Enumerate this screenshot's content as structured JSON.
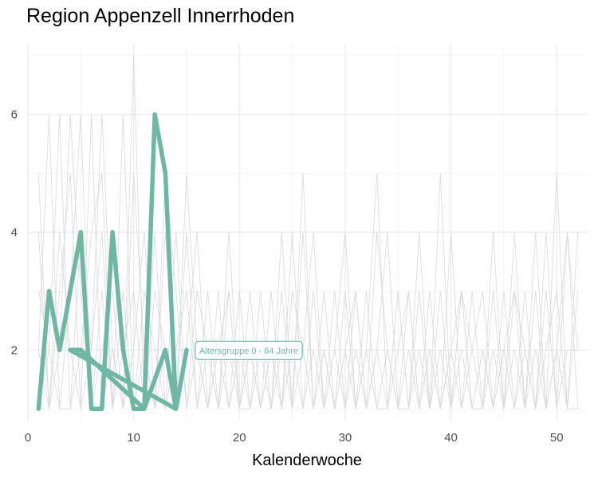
{
  "chart_data": {
    "type": "line",
    "title": "Region Appenzell Innerrhoden",
    "xlabel": "Kalenderwoche",
    "ylabel": "",
    "xlim": [
      0,
      53
    ],
    "ylim": [
      0.8,
      7.2
    ],
    "x_ticks": [
      0,
      10,
      20,
      30,
      40,
      50
    ],
    "y_ticks": [
      2,
      4,
      6
    ],
    "grid": true,
    "highlight_color": "#6DB7A4",
    "background_color": "#D9D9D9",
    "highlight_series": {
      "name": "Altersgruppe 0 - 64 Jahre",
      "x": [
        1,
        2,
        3,
        5,
        6,
        7,
        8,
        9,
        10,
        11,
        12,
        13,
        14,
        4,
        5,
        8,
        11,
        13,
        14,
        15
      ],
      "y": [
        1,
        3,
        2,
        4,
        1,
        1,
        4,
        2,
        1,
        1,
        6,
        5,
        1,
        2,
        2,
        1.5,
        1,
        2,
        1,
        2
      ]
    },
    "background_series": [
      {
        "x": [
          1,
          2,
          3,
          4,
          5,
          6,
          7,
          8,
          9,
          10,
          11,
          12,
          13,
          14,
          15,
          16,
          17,
          18,
          19,
          20,
          21,
          22,
          23,
          24,
          25,
          26,
          27,
          28,
          29,
          30,
          31,
          32,
          33,
          34,
          35,
          36,
          37,
          38,
          39,
          40,
          41,
          42,
          43,
          44,
          45,
          46,
          47,
          48,
          49,
          50,
          51,
          52
        ],
        "y": [
          5,
          1,
          4,
          2,
          1,
          6,
          1,
          2,
          1,
          7,
          1,
          3,
          2,
          1,
          5,
          2,
          1,
          3,
          1,
          2,
          1,
          3,
          1,
          2,
          1,
          5,
          1,
          2,
          1,
          3,
          1,
          2,
          5,
          1,
          3,
          1,
          2,
          1,
          3,
          1,
          2,
          1,
          1,
          3,
          1,
          4,
          1,
          2,
          1,
          5,
          1,
          3
        ]
      },
      {
        "x": [
          1,
          2,
          3,
          4,
          5,
          6,
          7,
          8,
          9,
          10,
          11,
          12,
          13,
          14,
          15,
          16,
          17,
          18,
          19,
          20,
          21,
          22,
          23,
          24,
          25,
          26,
          27,
          28,
          29,
          30,
          31,
          32,
          33,
          34,
          35,
          36,
          37,
          38,
          39,
          40,
          41,
          42,
          43,
          44,
          45,
          46,
          47,
          48,
          49,
          50,
          51,
          52
        ],
        "y": [
          2,
          6,
          1,
          3,
          6,
          1,
          2,
          3,
          1,
          5,
          2,
          1,
          4,
          1,
          2,
          4,
          1,
          2,
          1,
          3,
          1,
          2,
          1,
          4,
          1,
          2,
          4,
          1,
          2,
          1,
          3,
          1,
          2,
          4,
          1,
          1,
          3,
          1,
          5,
          1,
          3,
          1,
          2,
          1,
          3,
          1,
          2,
          1,
          3,
          1,
          4,
          2
        ]
      },
      {
        "x": [
          1,
          2,
          3,
          4,
          5,
          6,
          7,
          8,
          9,
          10,
          11,
          12,
          13,
          14,
          15,
          16,
          17,
          18,
          19,
          20,
          21,
          22,
          23,
          24,
          25,
          26,
          27,
          28,
          29,
          30,
          31,
          32,
          33,
          34,
          35,
          36,
          37,
          38,
          39,
          40,
          41,
          42,
          43,
          44,
          45,
          46,
          47,
          48,
          49,
          50,
          51,
          52
        ],
        "y": [
          1,
          2,
          6,
          1,
          2,
          4,
          5,
          1,
          6,
          1,
          3,
          2,
          1,
          4,
          1,
          3,
          2,
          1,
          4,
          1,
          2,
          1,
          3,
          1,
          2,
          1,
          3,
          1,
          2,
          4,
          1,
          2,
          1,
          1,
          3,
          1,
          4,
          1,
          2,
          1,
          3,
          2,
          1,
          4,
          1,
          2,
          1,
          4,
          1,
          2,
          4,
          1
        ]
      },
      {
        "x": [
          1,
          2,
          3,
          4,
          5,
          6,
          7,
          8,
          9,
          10,
          11,
          12,
          13,
          14,
          15,
          16,
          17,
          18,
          19,
          20,
          21,
          22,
          23,
          24,
          25,
          26,
          27,
          28,
          29,
          30,
          31,
          32,
          33,
          34,
          35,
          36,
          37,
          38,
          39,
          40,
          41,
          42,
          43,
          44,
          45,
          46,
          47,
          48,
          49,
          50,
          51,
          52
        ],
        "y": [
          4,
          1,
          2,
          6,
          3,
          1,
          3,
          1,
          2,
          3,
          1,
          4,
          1,
          2,
          3,
          1,
          2,
          1,
          3,
          1,
          3,
          1,
          2,
          1,
          4,
          1,
          2,
          1,
          3,
          1,
          2,
          1,
          4,
          2,
          1,
          3,
          1,
          2,
          1,
          4,
          1,
          3,
          1,
          2,
          1,
          3,
          2,
          1,
          2,
          3,
          1,
          4
        ]
      },
      {
        "x": [
          1,
          2,
          3,
          4,
          5,
          6,
          7,
          8,
          9,
          10,
          11,
          12,
          13,
          14,
          15,
          16,
          17,
          18,
          19,
          20,
          21,
          22,
          23,
          24,
          25,
          26,
          27,
          28,
          29,
          30,
          31,
          32,
          33,
          34,
          35,
          36,
          37,
          38,
          39,
          40,
          41,
          42,
          43,
          44,
          45,
          46,
          47,
          48,
          49,
          50,
          51,
          52
        ],
        "y": [
          3,
          2,
          1,
          1,
          4,
          2,
          6,
          2,
          1,
          2,
          4,
          1,
          2,
          1,
          4,
          1,
          3,
          1,
          2,
          1,
          1,
          2,
          1,
          3,
          1,
          4,
          1,
          2,
          1,
          2,
          1,
          3,
          1,
          2,
          1,
          2,
          1,
          3,
          1,
          2,
          1,
          2,
          3,
          1,
          2,
          1,
          3,
          1,
          4,
          1,
          2,
          2
        ]
      },
      {
        "x": [
          1,
          2,
          3,
          4,
          5,
          6,
          7,
          8,
          9,
          10,
          11,
          12,
          13,
          14,
          15,
          16,
          17,
          18,
          19,
          20,
          21,
          22,
          23,
          24,
          25,
          26,
          27,
          28,
          29,
          30,
          31,
          32,
          33,
          34,
          35,
          36,
          37,
          38,
          39,
          40,
          41,
          42,
          43,
          44,
          45,
          46,
          47,
          48,
          49,
          50,
          51,
          52
        ],
        "y": [
          2,
          1,
          3,
          5,
          1,
          2,
          4,
          1,
          3,
          1,
          2,
          1,
          5,
          3,
          1,
          2,
          1,
          2,
          3,
          1,
          2,
          1,
          2,
          1,
          3,
          2,
          1,
          3,
          1,
          2,
          3,
          1,
          2,
          1,
          2,
          3,
          1,
          2,
          1,
          2,
          3,
          1,
          2,
          1,
          2,
          3,
          1,
          3,
          1,
          2,
          1,
          1
        ]
      }
    ],
    "annotation": "Altersgruppe 0 - 64 Jahre"
  }
}
